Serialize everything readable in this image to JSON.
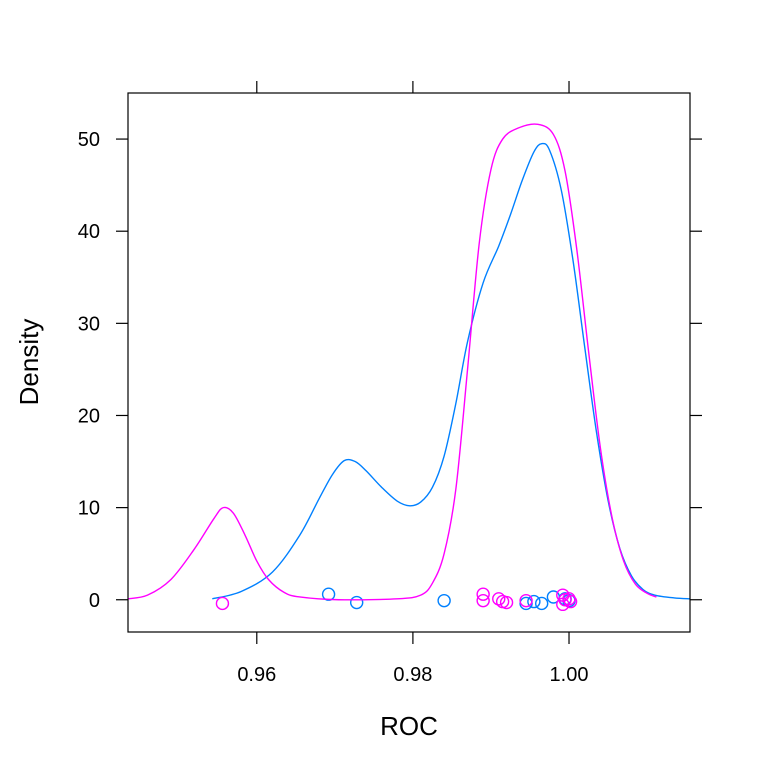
{
  "chart_data": {
    "type": "density",
    "xlabel": "ROC",
    "ylabel": "Density",
    "xlim": [
      0.9435,
      1.0155
    ],
    "ylim": [
      -3.5,
      55
    ],
    "x_ticks": [
      0.96,
      0.98,
      1.0
    ],
    "x_tick_labels": [
      "0.96",
      "0.98",
      "1.00"
    ],
    "y_ticks": [
      0,
      10,
      20,
      30,
      40,
      50
    ],
    "y_tick_labels": [
      "0",
      "10",
      "20",
      "30",
      "40",
      "50"
    ],
    "grid": false,
    "series": [
      {
        "color": "#0080ff",
        "curve": [
          [
            0.9543,
            0.1
          ],
          [
            0.958,
            0.9
          ],
          [
            0.962,
            3.0
          ],
          [
            0.9655,
            7.0
          ],
          [
            0.968,
            11.0
          ],
          [
            0.9697,
            13.6
          ],
          [
            0.9712,
            15.1
          ],
          [
            0.9726,
            15.0
          ],
          [
            0.974,
            14.0
          ],
          [
            0.976,
            12.2
          ],
          [
            0.978,
            10.7
          ],
          [
            0.9796,
            10.2
          ],
          [
            0.981,
            10.6
          ],
          [
            0.9825,
            12.2
          ],
          [
            0.984,
            15.6
          ],
          [
            0.9855,
            21.3
          ],
          [
            0.987,
            28.0
          ],
          [
            0.989,
            34.4
          ],
          [
            0.991,
            38.4
          ],
          [
            0.9925,
            41.8
          ],
          [
            0.994,
            45.5
          ],
          [
            0.9955,
            48.6
          ],
          [
            0.9965,
            49.5
          ],
          [
            0.9975,
            48.8
          ],
          [
            0.999,
            44.5
          ],
          [
            1.0005,
            36.9
          ],
          [
            1.002,
            27.5
          ],
          [
            1.0035,
            18.3
          ],
          [
            1.005,
            10.8
          ],
          [
            1.0065,
            5.6
          ],
          [
            1.008,
            2.6
          ],
          [
            1.0095,
            1.1
          ],
          [
            1.011,
            0.5
          ],
          [
            1.0135,
            0.2
          ],
          [
            1.0155,
            0.1
          ]
        ],
        "rug": [
          [
            0.9692,
            0.6
          ],
          [
            0.9728,
            -0.3
          ],
          [
            0.984,
            -0.1
          ],
          [
            0.9945,
            -0.4
          ],
          [
            0.9955,
            -0.2
          ],
          [
            0.9965,
            -0.4
          ],
          [
            0.998,
            0.3
          ],
          [
            0.9995,
            0.1
          ],
          [
            1.0,
            -0.1
          ]
        ]
      },
      {
        "color": "#ff00ff",
        "curve": [
          [
            0.9435,
            0.1
          ],
          [
            0.946,
            0.5
          ],
          [
            0.949,
            2.2
          ],
          [
            0.952,
            5.5
          ],
          [
            0.9545,
            8.8
          ],
          [
            0.9557,
            10.0
          ],
          [
            0.957,
            9.4
          ],
          [
            0.9585,
            7.0
          ],
          [
            0.96,
            4.2
          ],
          [
            0.9615,
            2.2
          ],
          [
            0.9635,
            0.8
          ],
          [
            0.9655,
            0.3
          ],
          [
            0.9705,
            0.0
          ],
          [
            0.978,
            0.1
          ],
          [
            0.981,
            0.5
          ],
          [
            0.9825,
            1.8
          ],
          [
            0.984,
            5.0
          ],
          [
            0.9855,
            12.0
          ],
          [
            0.987,
            25.0
          ],
          [
            0.9885,
            38.7
          ],
          [
            0.99,
            46.7
          ],
          [
            0.9915,
            50.0
          ],
          [
            0.9935,
            51.2
          ],
          [
            0.996,
            51.6
          ],
          [
            0.998,
            50.5
          ],
          [
            0.9995,
            46.5
          ],
          [
            1.001,
            38.0
          ],
          [
            1.0025,
            27.0
          ],
          [
            1.004,
            16.6
          ],
          [
            1.0055,
            9.0
          ],
          [
            1.007,
            4.2
          ],
          [
            1.0085,
            1.7
          ],
          [
            1.01,
            0.7
          ],
          [
            1.0112,
            0.3
          ]
        ],
        "rug": [
          [
            0.9556,
            -0.4
          ],
          [
            0.989,
            0.6
          ],
          [
            0.989,
            -0.1
          ],
          [
            0.991,
            0.1
          ],
          [
            0.9915,
            -0.2
          ],
          [
            0.992,
            -0.3
          ],
          [
            0.9945,
            -0.1
          ],
          [
            0.9992,
            0.5
          ],
          [
            0.9992,
            -0.5
          ],
          [
            0.9995,
            0.0
          ],
          [
            1.0,
            0.1
          ],
          [
            1.0002,
            -0.2
          ]
        ]
      }
    ]
  }
}
